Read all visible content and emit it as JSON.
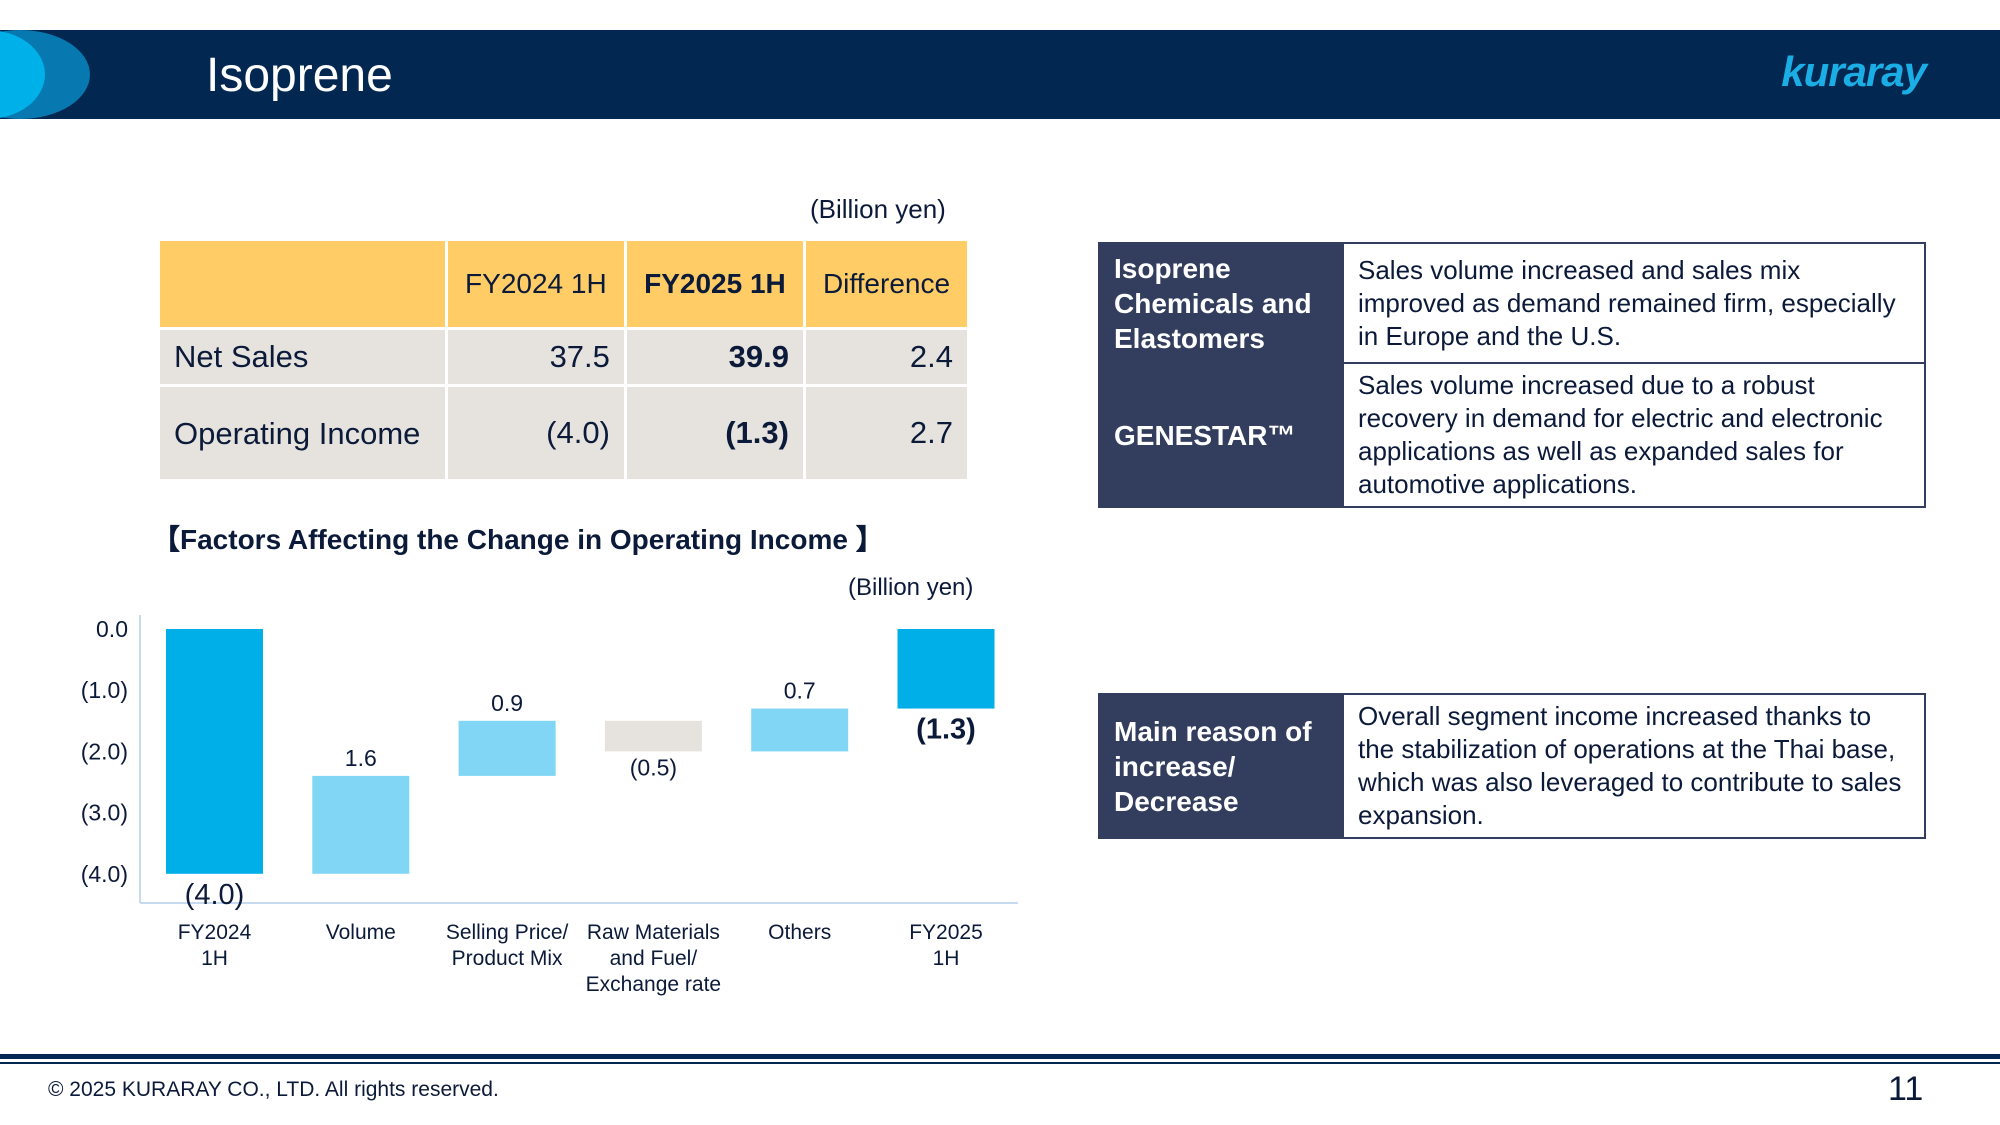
{
  "header": {
    "title": "Isoprene",
    "logo": "kuraray"
  },
  "table": {
    "unit": "(Billion yen)",
    "columns": [
      "",
      "FY2024 1H",
      "FY2025 1H",
      "Difference"
    ],
    "rows": [
      {
        "label": "Net Sales",
        "values": [
          "37.5",
          "39.9",
          "2.4"
        ]
      },
      {
        "label": "Operating Income",
        "values": [
          "(4.0)",
          "(1.3)",
          "2.7"
        ]
      }
    ]
  },
  "chart_data": {
    "type": "waterfall",
    "title": "【Factors Affecting the Change in Operating Income 】",
    "unit": "(Billion yen)",
    "categories": [
      "FY2024 1H",
      "Volume",
      "Selling Price/ Product Mix",
      "Raw Materials and Fuel/ Exchange rate",
      "Others",
      "FY2025 1H"
    ],
    "category_lines": [
      [
        "FY2024",
        "1H"
      ],
      [
        "Volume"
      ],
      [
        "Selling Price/",
        "Product Mix"
      ],
      [
        "Raw Materials",
        "and Fuel/",
        "Exchange rate"
      ],
      [
        "Others"
      ],
      [
        "FY2025",
        "1H"
      ]
    ],
    "values": [
      -4.0,
      1.6,
      0.9,
      -0.5,
      0.7,
      -1.3
    ],
    "kinds": [
      "total",
      "delta",
      "delta",
      "delta",
      "delta",
      "total"
    ],
    "labels": [
      "(4.0)",
      "1.6",
      "0.9",
      "(0.5)",
      "0.7",
      "(1.3)"
    ],
    "yticks": [
      "0.0",
      "(1.0)",
      "(2.0)",
      "(3.0)",
      "(4.0)"
    ],
    "ylim": [
      -4.4,
      0
    ],
    "colors": {
      "total": "#00aee8",
      "increase": "#82d6f5",
      "decrease": "#e6e3de"
    }
  },
  "boxes": [
    {
      "label": "Isoprene Chemicals and Elastomers",
      "text": "Sales volume increased and sales mix improved as demand remained firm, especially in Europe and the U.S."
    },
    {
      "label": "GENESTAR™",
      "text": "Sales volume increased due to a robust recovery in demand for electric and electronic applications as well as expanded sales for automotive applications."
    },
    {
      "label": "Main reason of increase/ Decrease",
      "text": "Overall segment income increased thanks to the stabilization of operations at the Thai base, which was also leveraged to contribute to sales expansion."
    }
  ],
  "footer": {
    "copyright": "© 2025 KURARAY CO., LTD. All rights reserved.",
    "page": "11"
  }
}
